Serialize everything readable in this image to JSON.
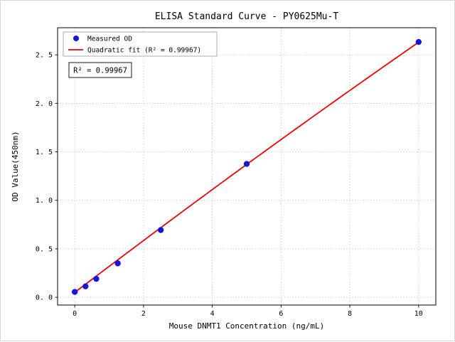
{
  "chart_data": {
    "type": "scatter",
    "title": "ELISA Standard Curve - PY0625Mu-T",
    "xlabel": "Mouse DNMT1 Concentration (ng/mL)",
    "ylabel": "OD Value(450nm)",
    "xlim": [
      -0.5,
      10.5
    ],
    "ylim": [
      -0.08,
      2.78
    ],
    "xticks": [
      0,
      2,
      4,
      6,
      8,
      10
    ],
    "xtick_labels": [
      "0",
      "2",
      "4",
      "6",
      "8",
      "10"
    ],
    "yticks": [
      0,
      0.5,
      1.0,
      1.5,
      2.0,
      2.5
    ],
    "ytick_labels": [
      "0. 0",
      "0. 5",
      "1. 0",
      "1. 5",
      "2. 0",
      "2. 5"
    ],
    "grid": true,
    "grid_style": "dotted",
    "legend_position": "upper left",
    "annotation": "R² = 0.99967",
    "series": [
      {
        "name": "Measured OD",
        "type": "scatter",
        "color": "#1414dc",
        "x": [
          0,
          0.313,
          0.625,
          1.25,
          2.5,
          5,
          10
        ],
        "y": [
          0.055,
          0.113,
          0.19,
          0.35,
          0.693,
          1.375,
          2.633
        ]
      },
      {
        "name": "Quadratic fit (R² = 0.99967)",
        "type": "line",
        "color": "#f00000",
        "fit": {
          "kind": "quadratic",
          "coeffs": [
            -0.0012,
            0.27,
            0.05
          ],
          "x_range": [
            0,
            10
          ]
        }
      }
    ]
  }
}
